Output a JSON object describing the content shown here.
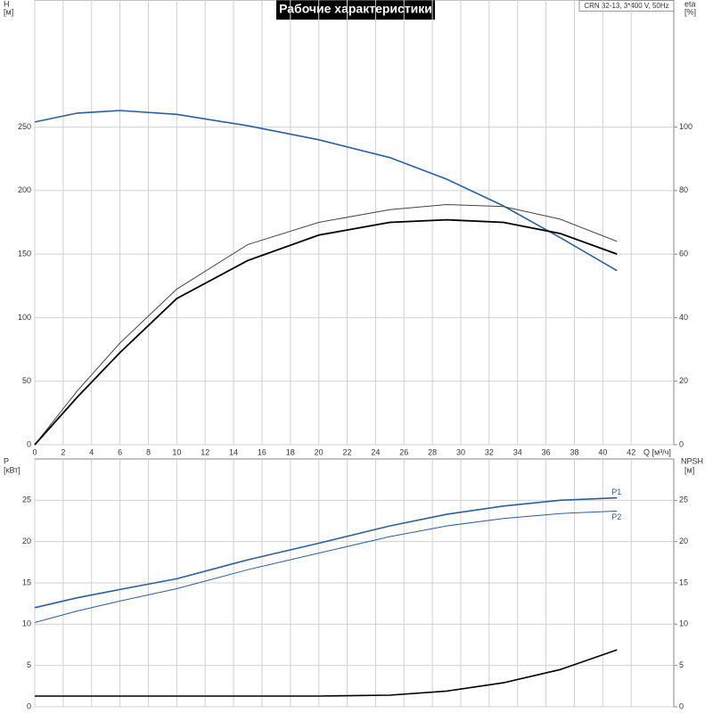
{
  "chart_data": [
    {
      "type": "line",
      "title": "Рабочие характеристики",
      "model": "CRN 32-13, 3*400 V, 50Hz",
      "x_label": "Q [м³/ч]",
      "y_label": "H",
      "y_unit": "[м]",
      "y2_label": "eta",
      "y2_unit": "[%]",
      "x": [
        0,
        3,
        6,
        10,
        15,
        20,
        25,
        29,
        33,
        37,
        41
      ],
      "series": [
        {
          "color": "#2a5f9e",
          "values": [
            254,
            261,
            263,
            260,
            251,
            240,
            226,
            209,
            188,
            163,
            137
          ]
        },
        {
          "color": "#444444",
          "axis": "y2",
          "values": [
            0,
            17,
            32,
            49,
            63,
            70,
            74,
            75.6,
            75,
            71,
            64
          ]
        },
        {
          "color": "#000000",
          "axis": "y2",
          "values": [
            0,
            15,
            29,
            46,
            58,
            66,
            70,
            70.8,
            70,
            66.5,
            60
          ]
        }
      ],
      "xlim": [
        0,
        45
      ],
      "xticks": [
        0,
        2,
        4,
        6,
        8,
        10,
        12,
        14,
        16,
        18,
        20,
        22,
        24,
        26,
        28,
        30,
        32,
        34,
        36,
        38,
        40,
        42
      ],
      "ylim": [
        0,
        350
      ],
      "yticks": [
        0,
        50,
        100,
        150,
        200,
        250
      ],
      "y2lim": [
        0,
        140
      ],
      "y2ticks": [
        0,
        20,
        40,
        60,
        80,
        100
      ],
      "grid": true
    },
    {
      "type": "line",
      "y_label": "P",
      "y_unit": "[кВт]",
      "y2_label": "NPSH",
      "y2_unit": "[м]",
      "x": [
        0,
        3,
        6,
        10,
        15,
        20,
        25,
        29,
        33,
        37,
        41
      ],
      "series": [
        {
          "name": "P1",
          "color": "#2a5f9e",
          "values": [
            12,
            13.2,
            14.2,
            15.5,
            17.8,
            19.8,
            21.9,
            23.3,
            24.3,
            25,
            25.3
          ]
        },
        {
          "name": "P2",
          "color": "#2a5f9e",
          "values": [
            10.2,
            11.6,
            12.8,
            14.3,
            16.6,
            18.6,
            20.6,
            21.9,
            22.8,
            23.4,
            23.7
          ]
        },
        {
          "color": "#000000",
          "axis": "y2",
          "values": [
            1.3,
            1.3,
            1.3,
            1.3,
            1.3,
            1.3,
            1.4,
            1.9,
            2.9,
            4.5,
            6.9
          ]
        }
      ],
      "xlim": [
        0,
        45
      ],
      "ylim": [
        0,
        30
      ],
      "yticks": [
        0,
        5,
        10,
        15,
        20,
        25
      ],
      "y2lim": [
        0,
        30
      ],
      "y2ticks": [
        0,
        5,
        10,
        15,
        20,
        25
      ],
      "grid": true
    }
  ]
}
